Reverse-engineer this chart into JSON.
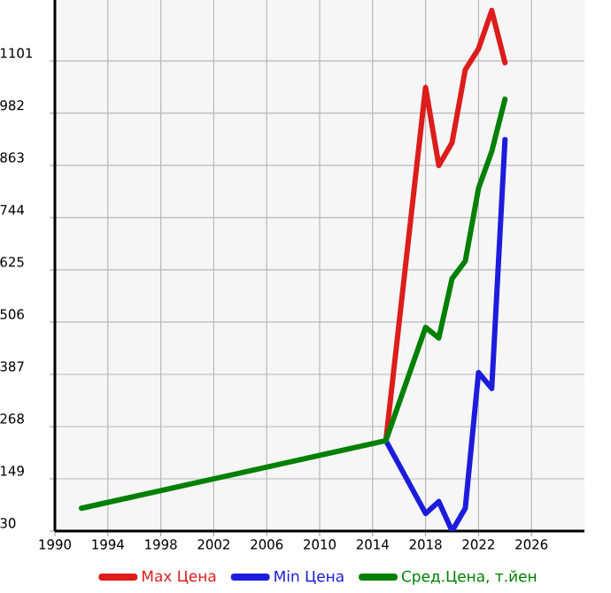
{
  "chart_data": {
    "type": "line",
    "xlim": [
      1990,
      2030
    ],
    "ylim": [
      30,
      1240
    ],
    "xticks": [
      1990,
      1994,
      1998,
      2002,
      2006,
      2010,
      2014,
      2018,
      2022,
      2026
    ],
    "yticks": [
      30,
      149,
      268,
      387,
      506,
      625,
      744,
      863,
      982,
      1101
    ],
    "grid": true,
    "legend": "bottom",
    "marker": "none",
    "line_style": "solid",
    "series": [
      {
        "name": "Max Цена",
        "color": "#dd1c1c",
        "x": [
          2015,
          2018,
          2019,
          2020,
          2021,
          2022,
          2023,
          2024
        ],
        "values": [
          236,
          1041,
          863,
          915,
          1081,
          1129,
          1216,
          1097
        ]
      },
      {
        "name": "Min Цена",
        "color": "#1c1cdd",
        "x": [
          2015,
          2018,
          2019,
          2020,
          2021,
          2022,
          2023,
          2024
        ],
        "values": [
          236,
          70,
          97,
          30,
          82,
          391,
          355,
          922
        ]
      },
      {
        "name": "Сред.Цена, т.йен",
        "color": "#008000",
        "x": [
          1992,
          2015,
          2018,
          2019,
          2020,
          2021,
          2022,
          2023,
          2024
        ],
        "values": [
          82,
          236,
          494,
          470,
          605,
          645,
          811,
          895,
          1014
        ]
      }
    ]
  }
}
